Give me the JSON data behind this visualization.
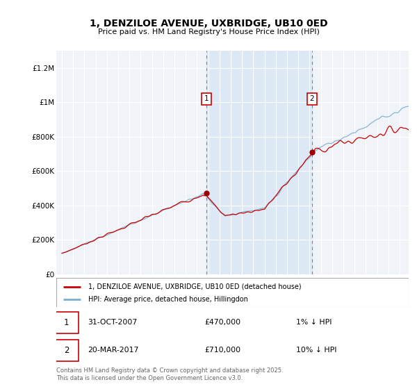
{
  "title": "1, DENZILOE AVENUE, UXBRIDGE, UB10 0ED",
  "subtitle": "Price paid vs. HM Land Registry's House Price Index (HPI)",
  "ylim": [
    0,
    1300000
  ],
  "yticks": [
    0,
    200000,
    400000,
    600000,
    800000,
    1000000,
    1200000
  ],
  "ytick_labels": [
    "£0",
    "£200K",
    "£400K",
    "£600K",
    "£800K",
    "£1M",
    "£1.2M"
  ],
  "red_line_label": "1, DENZILOE AVENUE, UXBRIDGE, UB10 0ED (detached house)",
  "blue_line_label": "HPI: Average price, detached house, Hillingdon",
  "sale1_date": "31-OCT-2007",
  "sale1_price": "£470,000",
  "sale1_hpi": "1% ↓ HPI",
  "sale2_date": "20-MAR-2017",
  "sale2_price": "£710,000",
  "sale2_hpi": "10% ↓ HPI",
  "footer": "Contains HM Land Registry data © Crown copyright and database right 2025.\nThis data is licensed under the Open Government Licence v3.0.",
  "sale1_x": 2007.83,
  "sale1_y": 470000,
  "sale2_x": 2017.22,
  "sale2_y": 710000,
  "red_color": "#cc0000",
  "blue_color": "#7aafcf",
  "dot_color": "#990000",
  "background_color": "#ffffff",
  "plot_bg_color": "#f0f4f8",
  "shade_color": "#dce8f5",
  "grid_color": "#ffffff",
  "xmin": 1994.5,
  "xmax": 2025.8,
  "figsize": [
    6.0,
    5.6
  ],
  "dpi": 100
}
